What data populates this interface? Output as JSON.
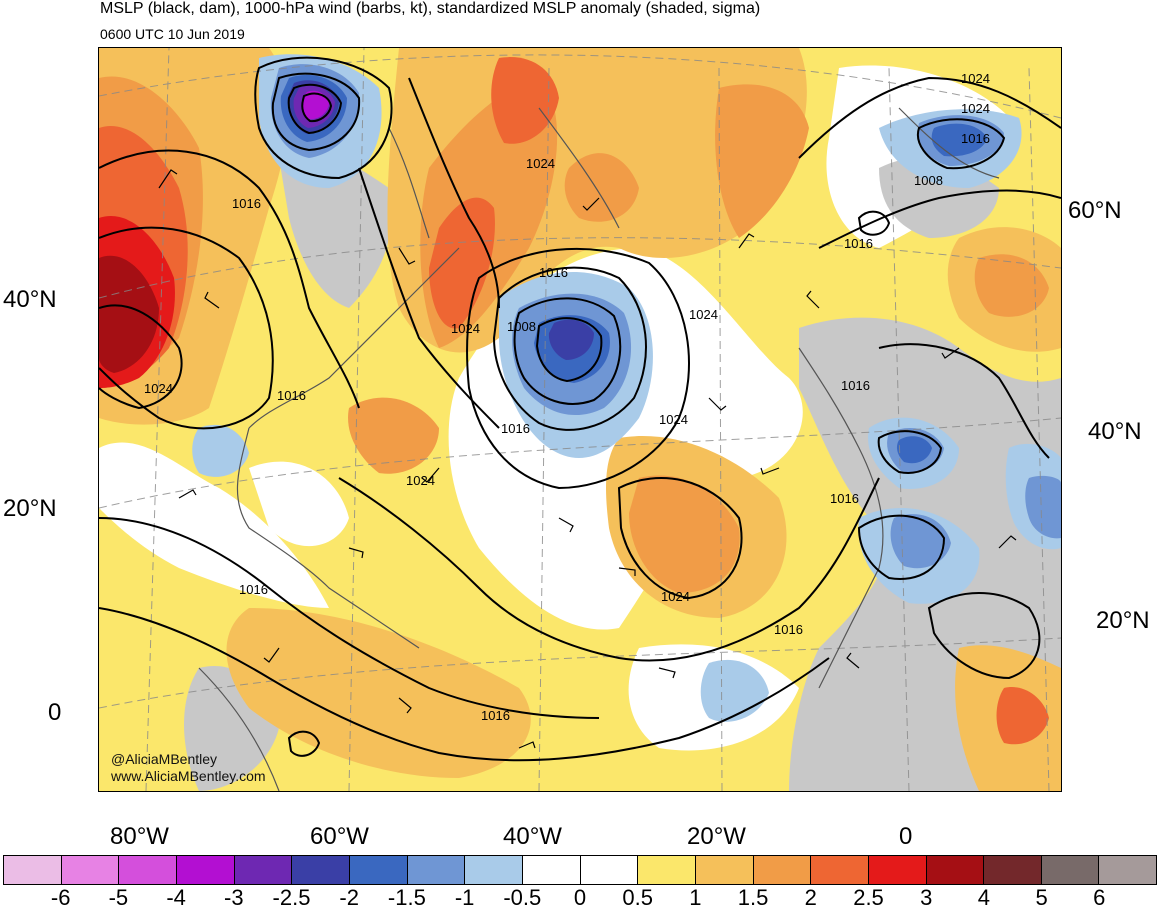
{
  "header": {
    "title": "MSLP (black, dam), 1000-hPa wind (barbs, kt), standardized MSLP anomaly (shaded, sigma)",
    "valid_time": "0600 UTC 10 Jun 2019"
  },
  "credits": {
    "handle": "@AliciaMBentley",
    "website": "www.AliciaMBentley.com"
  },
  "lat_labels_left": [
    "40°N",
    "20°N",
    "0"
  ],
  "lat_labels_right": [
    "60°N",
    "40°N",
    "20°N"
  ],
  "lon_labels": [
    "80°W",
    "60°W",
    "40°W",
    "20°W",
    "0"
  ],
  "contour_labels": [
    "1016",
    "1024",
    "1024",
    "1024",
    "1008",
    "1016",
    "1016",
    "1016",
    "1024",
    "1024",
    "1024",
    "1024",
    "1016",
    "1024",
    "1016",
    "1016",
    "1008",
    "1016",
    "1016",
    "1016",
    "1024",
    "1016"
  ],
  "colorbar": {
    "colors": [
      "#ebbde6",
      "#e782e4",
      "#d44fdc",
      "#b30fd2",
      "#6e28b2",
      "#3a3fa6",
      "#3a68c0",
      "#6f96d4",
      "#a9cbe9",
      "#ffffff",
      "#ffffff",
      "#fbe76b",
      "#f5c05a",
      "#f19c47",
      "#ee6633",
      "#e41a1a",
      "#a50f14",
      "#73282b",
      "#786a69",
      "#a59a9a"
    ],
    "tick_labels": [
      "-6",
      "-5",
      "-4",
      "-3",
      "-2.5",
      "-2",
      "-1.5",
      "-1",
      "-0.5",
      "0",
      "0.5",
      "1",
      "1.5",
      "2",
      "2.5",
      "3",
      "4",
      "5",
      "6"
    ]
  },
  "colors": {
    "land_no_anomaly": "#c8c8c8",
    "contours": "#000000"
  }
}
